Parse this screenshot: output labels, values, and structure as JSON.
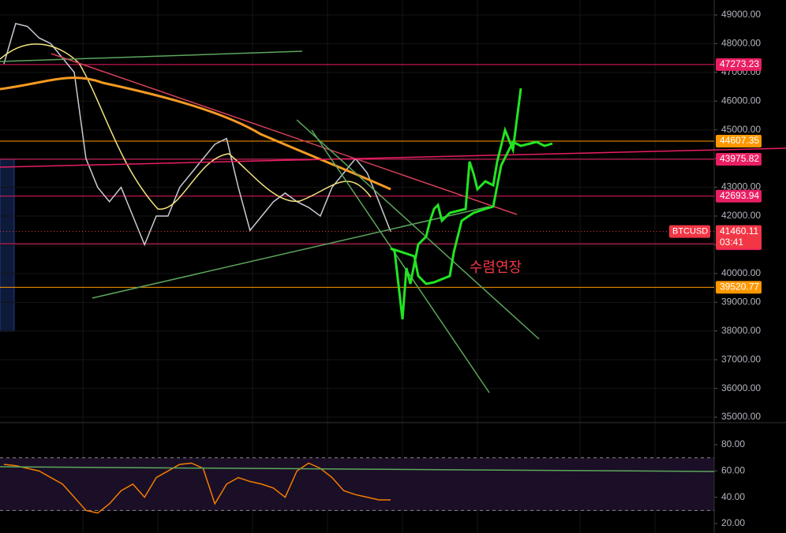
{
  "chart_data": [
    {
      "type": "line",
      "symbol": "BTCUSD",
      "categories": [
        null,
        null,
        null,
        null,
        null,
        null,
        null,
        null,
        null,
        null,
        null,
        null,
        null,
        null,
        null,
        null,
        null,
        null,
        null,
        null,
        null,
        null,
        null,
        null,
        null,
        null,
        null,
        null,
        null,
        null,
        null,
        null,
        null,
        null
      ],
      "series": [
        {
          "color": "#c8cbd4",
          "values": [
            47300,
            48700,
            48600,
            48200,
            48000,
            47500,
            47000,
            44000,
            43000,
            42500,
            43000,
            42000,
            41000,
            42000,
            42000,
            43000,
            43500,
            44000,
            44500,
            44700,
            43000,
            41500,
            42000,
            42500,
            42800,
            42500,
            42300,
            42000,
            43000,
            43500,
            44000,
            43500,
            42500,
            41460.11
          ]
        }
      ],
      "ylim": [
        34810,
        49520
      ],
      "yticks": [
        {
          "value": 35000,
          "label": "35000.00"
        },
        {
          "value": 36000,
          "label": "36000.00"
        },
        {
          "value": 37000,
          "label": "37000.00"
        },
        {
          "value": 38000,
          "label": "38000.00"
        },
        {
          "value": 39000,
          "label": "39000.00"
        },
        {
          "value": 40000,
          "label": "40000.00"
        },
        {
          "value": 41000,
          "label": "41000.00"
        },
        {
          "value": 42000,
          "label": "42000.00"
        },
        {
          "value": 43000,
          "label": "43000.00"
        },
        {
          "value": 44000,
          "label": "44000.00"
        },
        {
          "value": 45000,
          "label": "45000.00"
        },
        {
          "value": 46000,
          "label": "46000.00"
        },
        {
          "value": 47000,
          "label": "47000.00"
        },
        {
          "value": 48000,
          "label": "48000.00"
        },
        {
          "value": 49000,
          "label": "49000.00"
        }
      ],
      "grid": true,
      "price_lines": [
        {
          "value": 47273.23,
          "color": "#e91e63"
        },
        {
          "value": 44607.35,
          "color": "#ff9800"
        },
        {
          "value": 43975.82,
          "color": "#e91e63"
        },
        {
          "value": 42693.94,
          "color": "#e91e63"
        },
        {
          "value": 41037.09,
          "color": "#e91e63"
        },
        {
          "value": 39520.77,
          "color": "#ff9800"
        }
      ],
      "last_price": {
        "value": 41460.11,
        "countdown": "03:41",
        "color": "#f23645"
      },
      "annotation": "수렴연장"
    },
    {
      "type": "line",
      "categories": [
        null,
        null,
        null,
        null,
        null,
        null,
        null,
        null,
        null,
        null,
        null,
        null,
        null,
        null,
        null,
        null,
        null,
        null,
        null,
        null,
        null,
        null,
        null,
        null,
        null,
        null,
        null,
        null,
        null,
        null,
        null,
        null,
        null,
        null
      ],
      "series": [
        {
          "color": "#f57c00",
          "values": [
            65,
            64,
            62,
            60,
            55,
            50,
            40,
            30,
            28,
            35,
            45,
            50,
            40,
            55,
            60,
            65,
            66,
            62,
            35,
            50,
            55,
            52,
            50,
            47,
            40,
            60,
            66,
            62,
            55,
            45,
            42,
            40,
            38,
            38
          ]
        }
      ],
      "ylim": [
        12.8,
        94.4
      ],
      "yticks": [
        {
          "value": 20,
          "label": "20.00"
        },
        {
          "value": 40,
          "label": "40.00"
        },
        {
          "value": 60,
          "label": "60.00"
        },
        {
          "value": 80,
          "label": "80.00"
        }
      ],
      "band_lines": [
        70,
        30
      ]
    }
  ]
}
